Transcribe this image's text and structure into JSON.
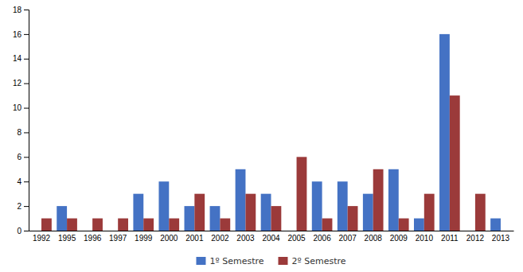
{
  "chart_data": {
    "type": "bar",
    "categories": [
      1992,
      1995,
      1996,
      1997,
      1999,
      2000,
      2001,
      2002,
      2003,
      2004,
      2005,
      2006,
      2007,
      2008,
      2009,
      2010,
      2011,
      2012,
      2013
    ],
    "series": [
      {
        "name": "1º Semestre",
        "color": "#4472C4",
        "values": [
          0,
          2,
          0,
          0,
          3,
          4,
          2,
          2,
          5,
          3,
          0,
          4,
          4,
          3,
          5,
          1,
          16,
          0,
          1
        ]
      },
      {
        "name": "2º Semestre",
        "color": "#9B3A3A",
        "values": [
          1,
          1,
          1,
          1,
          1,
          1,
          3,
          1,
          3,
          2,
          6,
          1,
          2,
          5,
          1,
          3,
          11,
          3,
          0
        ]
      }
    ],
    "ylim": [
      0,
      18
    ],
    "yticks": [
      0,
      2,
      4,
      6,
      8,
      10,
      12,
      14,
      16,
      18
    ],
    "grid": false,
    "legend": "bottom"
  }
}
